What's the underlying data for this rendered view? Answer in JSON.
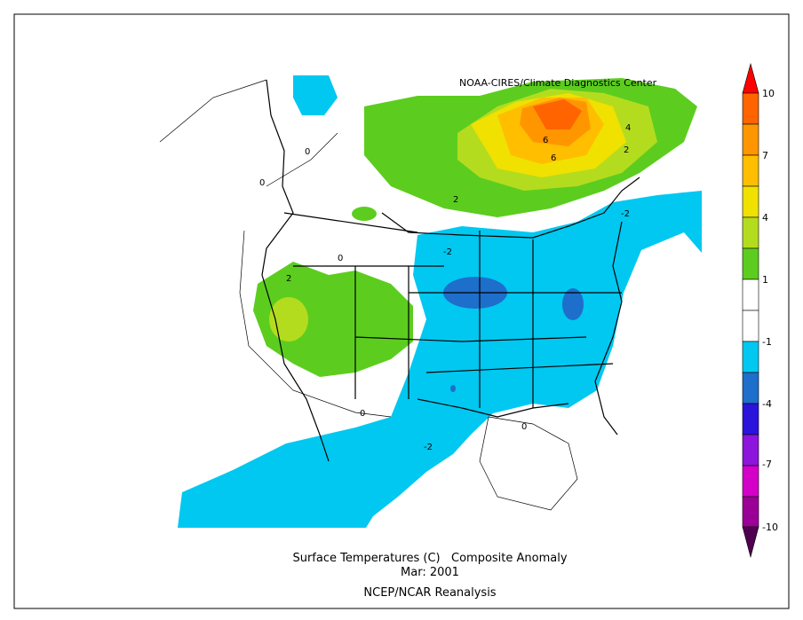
{
  "credit": "NOAA-CIRES/Climate Diagnostics Center",
  "title": "Surface Temperatures (C)   Composite Anomaly",
  "date": "Mar: 2001",
  "source": "NCEP/NCAR Reanalysis",
  "colorbar_labels": [
    10,
    7,
    4,
    1,
    -1,
    -4,
    -7,
    -10
  ],
  "contour_labels": [
    2,
    0,
    0,
    0,
    0,
    0,
    -2,
    -2,
    -2,
    2,
    2,
    4,
    6,
    6
  ]
}
